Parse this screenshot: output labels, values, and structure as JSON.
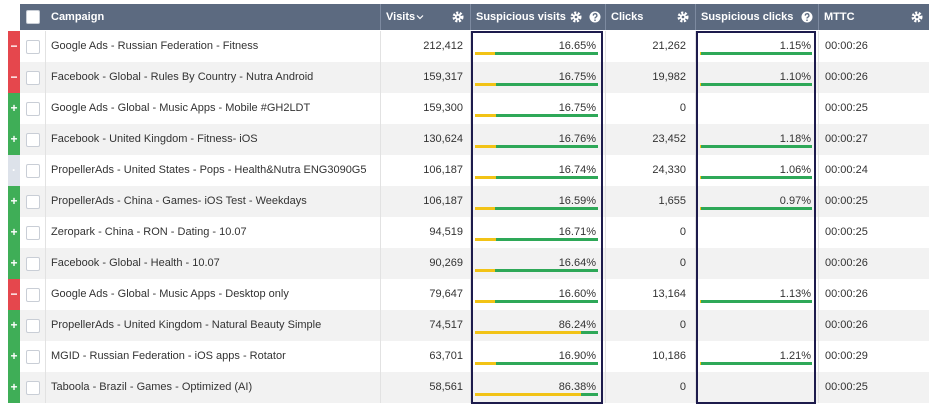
{
  "table": {
    "columns": [
      "Campaign",
      "Visits",
      "Suspicious visits",
      "Clicks",
      "Suspicious clicks",
      "MTTC"
    ],
    "status_colors": {
      "+": "#3fae57",
      "−": "#e5474d",
      "·": "#dde2ea"
    },
    "bar_colors": {
      "suspicious": "#f2c316",
      "clean": "#2ea858"
    },
    "rows": [
      {
        "status": "−",
        "campaign": "Google Ads - Russian Federation - Fitness",
        "visits": "212,412",
        "suspicious_visits": {
          "value": 16.65,
          "label": "16.65%"
        },
        "clicks": "21,262",
        "suspicious_clicks": {
          "value": 1.15,
          "label": "1.15%"
        },
        "mttc": "00:00:26"
      },
      {
        "status": "−",
        "campaign": "Facebook - Global - Rules By Country - Nutra Android",
        "visits": "159,317",
        "suspicious_visits": {
          "value": 16.75,
          "label": "16.75%"
        },
        "clicks": "19,982",
        "suspicious_clicks": {
          "value": 1.1,
          "label": "1.10%"
        },
        "mttc": "00:00:26"
      },
      {
        "status": "+",
        "campaign": "Google Ads - Global - Music Apps - Mobile #GH2LDT",
        "visits": "159,300",
        "suspicious_visits": {
          "value": 16.75,
          "label": "16.75%"
        },
        "clicks": "0",
        "suspicious_clicks": null,
        "mttc": "00:00:25"
      },
      {
        "status": "+",
        "campaign": "Facebook - United Kingdom - Fitness- iOS",
        "visits": "130,624",
        "suspicious_visits": {
          "value": 16.76,
          "label": "16.76%"
        },
        "clicks": "23,452",
        "suspicious_clicks": {
          "value": 1.18,
          "label": "1.18%"
        },
        "mttc": "00:00:27"
      },
      {
        "status": "·",
        "campaign": "PropellerAds - United States - Pops - Health&Nutra ENG3090G5",
        "visits": "106,187",
        "suspicious_visits": {
          "value": 16.74,
          "label": "16.74%"
        },
        "clicks": "24,330",
        "suspicious_clicks": {
          "value": 1.06,
          "label": "1.06%"
        },
        "mttc": "00:00:24"
      },
      {
        "status": "+",
        "campaign": "PropellerAds - China - Games- iOS Test - Weekdays",
        "visits": "106,187",
        "suspicious_visits": {
          "value": 16.59,
          "label": "16.59%"
        },
        "clicks": "1,655",
        "suspicious_clicks": {
          "value": 0.97,
          "label": "0.97%"
        },
        "mttc": "00:00:25"
      },
      {
        "status": "+",
        "campaign": "Zeropark - China - RON - Dating - 10.07",
        "visits": "94,519",
        "suspicious_visits": {
          "value": 16.71,
          "label": "16.71%"
        },
        "clicks": "0",
        "suspicious_clicks": null,
        "mttc": "00:00:25"
      },
      {
        "status": "+",
        "campaign": "Facebook - Global - Health - 10.07",
        "visits": "90,269",
        "suspicious_visits": {
          "value": 16.64,
          "label": "16.64%"
        },
        "clicks": "0",
        "suspicious_clicks": null,
        "mttc": "00:00:26"
      },
      {
        "status": "−",
        "campaign": "Google Ads - Global - Music Apps - Desktop only",
        "visits": "79,647",
        "suspicious_visits": {
          "value": 16.6,
          "label": "16.60%"
        },
        "clicks": "13,164",
        "suspicious_clicks": {
          "value": 1.13,
          "label": "1.13%"
        },
        "mttc": "00:00:26"
      },
      {
        "status": "+",
        "campaign": "PropellerAds - United Kingdom - Natural Beauty Simple",
        "visits": "74,517",
        "suspicious_visits": {
          "value": 86.24,
          "label": "86.24%"
        },
        "clicks": "0",
        "suspicious_clicks": null,
        "mttc": "00:00:26"
      },
      {
        "status": "+",
        "campaign": "MGID - Russian Federation - iOS apps - Rotator",
        "visits": "63,701",
        "suspicious_visits": {
          "value": 16.9,
          "label": "16.90%"
        },
        "clicks": "10,186",
        "suspicious_clicks": {
          "value": 1.21,
          "label": "1.21%"
        },
        "mttc": "00:00:29"
      },
      {
        "status": "+",
        "campaign": "Taboola - Brazil - Games - Optimized (AI)",
        "visits": "58,561",
        "suspicious_visits": {
          "value": 86.38,
          "label": "86.38%"
        },
        "clicks": "0",
        "suspicious_clicks": null,
        "mttc": "00:00:25"
      }
    ]
  }
}
